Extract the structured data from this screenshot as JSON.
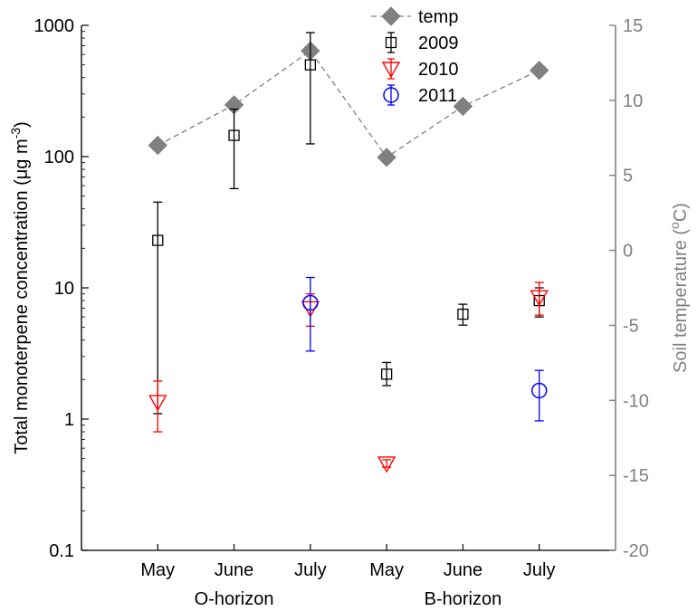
{
  "chart_data": {
    "type": "scatter",
    "categories": [
      "May",
      "June",
      "July",
      "May",
      "June",
      "July"
    ],
    "groups": [
      {
        "label": "O-horizon",
        "category_span": [
          0,
          2
        ]
      },
      {
        "label": "B-horizon",
        "category_span": [
          3,
          5
        ]
      }
    ],
    "y_left": {
      "label_main": "Total monoterpene concentration (μg m",
      "label_sup": "-3",
      "label_tail": ")",
      "scale": "log",
      "ylim": [
        0.1,
        1000
      ],
      "ticks": [
        0.1,
        1,
        10,
        100,
        1000
      ],
      "tick_labels": [
        "0.1",
        "1",
        "10",
        "100",
        "1000"
      ]
    },
    "y_right": {
      "label_main": "Soil temperature (",
      "label_sup": "o",
      "label_tail": "C)",
      "scale": "linear",
      "ylim": [
        -20,
        15
      ],
      "ticks": [
        -20,
        -15,
        -10,
        -5,
        0,
        5,
        10,
        15
      ],
      "tick_labels": [
        "-20",
        "-15",
        "-10",
        "-5",
        "0",
        "5",
        "10",
        "15"
      ]
    },
    "series": [
      {
        "name": "temp",
        "axis": "right",
        "marker": "diamond",
        "color": "#808080",
        "line": "dashed",
        "values": [
          7.0,
          9.7,
          13.3,
          6.2,
          9.6,
          12.0
        ]
      },
      {
        "name": "2009",
        "axis": "left",
        "marker": "square",
        "color": "#000000",
        "values": [
          23,
          145,
          500,
          2.2,
          6.3,
          8.0
        ],
        "err_low": [
          1.1,
          57,
          125,
          1.8,
          5.2,
          6.0
        ],
        "err_high": [
          45,
          230,
          880,
          2.7,
          7.5,
          10
        ]
      },
      {
        "name": "2010",
        "axis": "left",
        "marker": "triangle-down",
        "color": "#ff0000",
        "values": [
          1.35,
          null,
          7.0,
          0.46,
          null,
          8.5
        ],
        "err_low": [
          0.8,
          null,
          5.1,
          0.43,
          null,
          6.2
        ],
        "err_high": [
          1.95,
          null,
          9.0,
          0.49,
          null,
          11
        ]
      },
      {
        "name": "2011",
        "axis": "left",
        "marker": "circle",
        "color": "#0000ff",
        "values": [
          null,
          null,
          7.7,
          null,
          null,
          1.65
        ],
        "err_low": [
          null,
          null,
          3.3,
          null,
          null,
          0.97
        ],
        "err_high": [
          null,
          null,
          12,
          null,
          null,
          2.35
        ]
      }
    ],
    "legend": {
      "position": "top-center"
    },
    "grid": false
  }
}
